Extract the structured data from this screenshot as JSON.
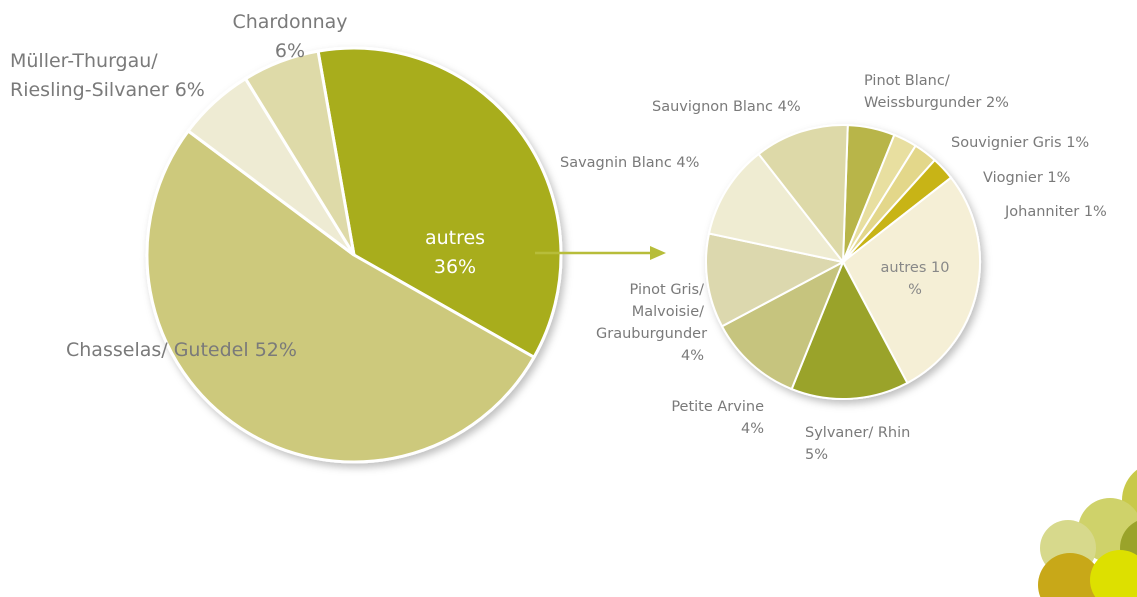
{
  "chart_data": [
    {
      "type": "pie",
      "categories": [
        "autres",
        "Chasselas/ Gutedel",
        "Müller-Thurgau/ Riesling-Silvaner",
        "Chardonnay"
      ],
      "values": [
        36,
        52,
        6,
        6
      ],
      "value_labels": [
        "36%",
        "52%",
        "6%",
        "6%"
      ],
      "colors": [
        "#a8ad1a",
        "#cdc97c",
        "#eeebd3",
        "#dedaa8"
      ]
    },
    {
      "type": "pie",
      "categories": [
        "Pinot Blanc/ Weissburgunder",
        "Souvignier Gris",
        "Viognier",
        "Johanniter",
        "autres",
        "Sylvaner/ Rhin",
        "Petite Arvine",
        "Pinot Gris/ Malvoisie/ Grauburgunder",
        "Savagnin Blanc",
        "Sauvignon Blanc"
      ],
      "values": [
        2,
        1,
        1,
        1,
        10,
        5,
        4,
        4,
        4,
        4
      ],
      "value_labels": [
        "2%",
        "1%",
        "1%",
        "1%",
        "10 %",
        "5%",
        "4%",
        "4%",
        "4%",
        "4%"
      ],
      "colors": [
        "#b8b54a",
        "#e8dfa0",
        "#e3d78a",
        "#c8b418",
        "#f5efd6",
        "#9aa32a",
        "#c6c47e",
        "#dcd8ae",
        "#efecd2",
        "#ddd9a8"
      ]
    }
  ]
}
